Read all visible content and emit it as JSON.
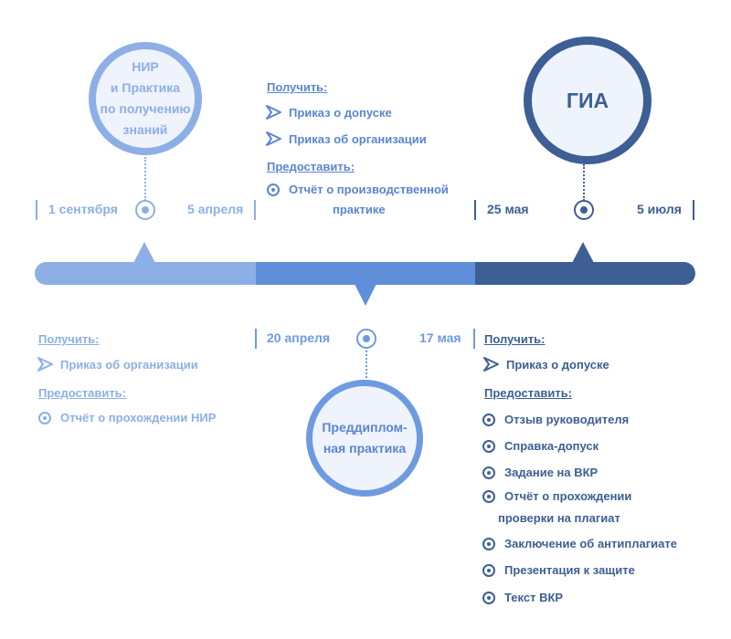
{
  "stages": {
    "nir": {
      "lines": [
        "НИР",
        "и Практика",
        "по получению",
        "знаний"
      ]
    },
    "prediploma": {
      "lines": [
        "Преддиплом-",
        "ная практика"
      ]
    },
    "gia": {
      "lines": [
        "ГИА"
      ]
    }
  },
  "dates": {
    "nir_start": "1 сентября",
    "nir_end": "5 апреля",
    "pre_start": "20 апреля",
    "pre_end": "17 мая",
    "gia_start": "25 мая",
    "gia_end": "5 июля"
  },
  "top_middle": {
    "get_heading": "Получить:",
    "get_items": [
      "Приказ о допуске",
      "Приказ об организации"
    ],
    "give_heading": "Предоставить:",
    "give_items": [
      "Отчёт о производственной",
      "практике"
    ]
  },
  "bottom_left": {
    "get_heading": "Получить:",
    "get_items": [
      "Приказ об организации"
    ],
    "give_heading": "Предоставить:",
    "give_items": [
      "Отчёт о прохождении НИР"
    ]
  },
  "bottom_right": {
    "get_heading": "Получить:",
    "get_items": [
      "Приказ о допуске"
    ],
    "give_heading": "Предоставить:",
    "give_items": [
      "Отзыв руководителя",
      "Справка-допуск",
      "Задание на ВКР",
      "Отчёт о прохождении",
      "проверки на плагиат",
      "Заключение об антиплагиате",
      "Презентация к защите",
      "Текст ВКР"
    ]
  },
  "colors": {
    "light": "#8dafe6",
    "medium": "#6e9be0",
    "dark": "#3d5f93",
    "bar_light": "#8dafe6",
    "bar_medium": "#5f8fdb",
    "bar_dark": "#3d5f93"
  }
}
